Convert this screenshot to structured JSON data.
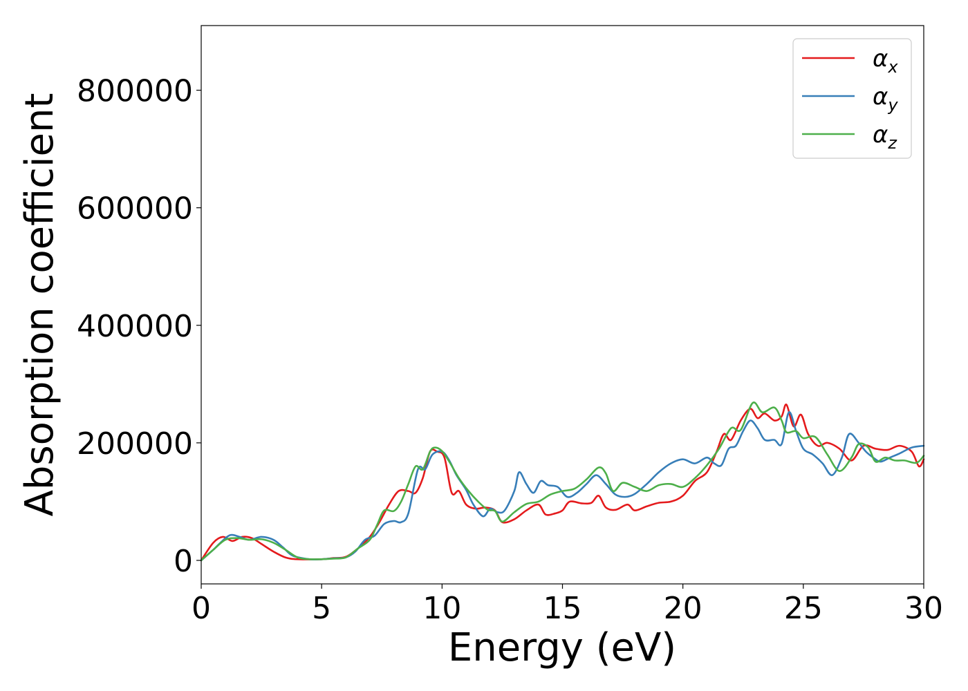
{
  "chart_data": {
    "type": "line",
    "title": "",
    "xlabel": "Energy (eV)",
    "ylabel": "Absorption coefficient",
    "xlim": [
      0,
      30
    ],
    "ylim": [
      -40000,
      910000
    ],
    "xticks": [
      0,
      5,
      10,
      15,
      20,
      25,
      30
    ],
    "xtick_labels": [
      "0",
      "5",
      "10",
      "15",
      "20",
      "25",
      "30"
    ],
    "yticks": [
      0,
      200000,
      400000,
      600000,
      800000
    ],
    "ytick_labels": [
      "0",
      "200000",
      "400000",
      "600000",
      "800000"
    ],
    "grid": false,
    "legend_position": "top-right",
    "series": [
      {
        "name": "α_x",
        "legend_main": "α",
        "legend_sub": "x",
        "color": "#e41a1c",
        "points": [
          [
            0,
            0
          ],
          [
            0.5,
            30000
          ],
          [
            0.9,
            40000
          ],
          [
            1.3,
            33000
          ],
          [
            1.7,
            40000
          ],
          [
            2.1,
            38000
          ],
          [
            2.5,
            28000
          ],
          [
            3.0,
            15000
          ],
          [
            3.5,
            5000
          ],
          [
            4.0,
            2000
          ],
          [
            5.0,
            2000
          ],
          [
            5.5,
            4000
          ],
          [
            6.0,
            6000
          ],
          [
            6.5,
            20000
          ],
          [
            7.0,
            40000
          ],
          [
            7.4,
            65000
          ],
          [
            7.8,
            95000
          ],
          [
            8.2,
            118000
          ],
          [
            8.6,
            118000
          ],
          [
            8.9,
            115000
          ],
          [
            9.2,
            140000
          ],
          [
            9.5,
            185000
          ],
          [
            9.8,
            185000
          ],
          [
            10.1,
            175000
          ],
          [
            10.4,
            115000
          ],
          [
            10.7,
            118000
          ],
          [
            11.0,
            95000
          ],
          [
            11.4,
            88000
          ],
          [
            11.8,
            90000
          ],
          [
            12.2,
            85000
          ],
          [
            12.5,
            65000
          ],
          [
            13.0,
            70000
          ],
          [
            13.5,
            85000
          ],
          [
            14.0,
            95000
          ],
          [
            14.3,
            78000
          ],
          [
            14.7,
            80000
          ],
          [
            15.0,
            85000
          ],
          [
            15.3,
            100000
          ],
          [
            15.8,
            97000
          ],
          [
            16.2,
            98000
          ],
          [
            16.5,
            110000
          ],
          [
            16.8,
            90000
          ],
          [
            17.2,
            86000
          ],
          [
            17.7,
            95000
          ],
          [
            18.0,
            85000
          ],
          [
            18.5,
            92000
          ],
          [
            19.0,
            98000
          ],
          [
            19.5,
            100000
          ],
          [
            20.0,
            110000
          ],
          [
            20.5,
            135000
          ],
          [
            21.0,
            150000
          ],
          [
            21.4,
            185000
          ],
          [
            21.7,
            215000
          ],
          [
            22.0,
            205000
          ],
          [
            22.4,
            238000
          ],
          [
            22.8,
            258000
          ],
          [
            23.1,
            242000
          ],
          [
            23.4,
            250000
          ],
          [
            23.8,
            238000
          ],
          [
            24.1,
            245000
          ],
          [
            24.3,
            265000
          ],
          [
            24.6,
            228000
          ],
          [
            24.9,
            248000
          ],
          [
            25.2,
            215000
          ],
          [
            25.6,
            195000
          ],
          [
            26.0,
            200000
          ],
          [
            26.5,
            190000
          ],
          [
            27.0,
            170000
          ],
          [
            27.5,
            195000
          ],
          [
            28.0,
            190000
          ],
          [
            28.5,
            188000
          ],
          [
            29.0,
            195000
          ],
          [
            29.5,
            185000
          ],
          [
            29.8,
            160000
          ],
          [
            30.0,
            172000
          ]
        ]
      },
      {
        "name": "α_y",
        "legend_main": "α",
        "legend_sub": "y",
        "color": "#377eb8",
        "points": [
          [
            0,
            0
          ],
          [
            0.5,
            18000
          ],
          [
            0.8,
            30000
          ],
          [
            1.2,
            43000
          ],
          [
            1.6,
            40000
          ],
          [
            2.0,
            35000
          ],
          [
            2.5,
            40000
          ],
          [
            3.0,
            35000
          ],
          [
            3.4,
            22000
          ],
          [
            3.8,
            8000
          ],
          [
            4.5,
            2000
          ],
          [
            5.0,
            2000
          ],
          [
            5.5,
            3500
          ],
          [
            6.0,
            5000
          ],
          [
            6.4,
            15000
          ],
          [
            6.8,
            35000
          ],
          [
            7.2,
            42000
          ],
          [
            7.6,
            62000
          ],
          [
            8.0,
            67000
          ],
          [
            8.3,
            65000
          ],
          [
            8.6,
            80000
          ],
          [
            9.0,
            155000
          ],
          [
            9.3,
            155000
          ],
          [
            9.6,
            180000
          ],
          [
            10.0,
            185000
          ],
          [
            10.3,
            170000
          ],
          [
            10.6,
            145000
          ],
          [
            11.0,
            120000
          ],
          [
            11.3,
            95000
          ],
          [
            11.7,
            75000
          ],
          [
            12.0,
            88000
          ],
          [
            12.3,
            82000
          ],
          [
            12.6,
            85000
          ],
          [
            13.0,
            118000
          ],
          [
            13.2,
            150000
          ],
          [
            13.5,
            130000
          ],
          [
            13.8,
            115000
          ],
          [
            14.1,
            135000
          ],
          [
            14.4,
            128000
          ],
          [
            14.8,
            125000
          ],
          [
            15.2,
            108000
          ],
          [
            15.6,
            115000
          ],
          [
            16.0,
            130000
          ],
          [
            16.4,
            145000
          ],
          [
            16.8,
            130000
          ],
          [
            17.2,
            112000
          ],
          [
            17.6,
            108000
          ],
          [
            18.0,
            113000
          ],
          [
            18.5,
            130000
          ],
          [
            19.0,
            150000
          ],
          [
            19.5,
            165000
          ],
          [
            20.0,
            172000
          ],
          [
            20.5,
            165000
          ],
          [
            21.0,
            175000
          ],
          [
            21.3,
            165000
          ],
          [
            21.6,
            162000
          ],
          [
            21.9,
            190000
          ],
          [
            22.2,
            195000
          ],
          [
            22.5,
            220000
          ],
          [
            22.8,
            238000
          ],
          [
            23.1,
            225000
          ],
          [
            23.4,
            205000
          ],
          [
            23.8,
            205000
          ],
          [
            24.1,
            198000
          ],
          [
            24.4,
            252000
          ],
          [
            24.7,
            220000
          ],
          [
            25.0,
            190000
          ],
          [
            25.4,
            180000
          ],
          [
            25.8,
            165000
          ],
          [
            26.2,
            145000
          ],
          [
            26.6,
            175000
          ],
          [
            26.9,
            215000
          ],
          [
            27.3,
            200000
          ],
          [
            27.6,
            185000
          ],
          [
            27.9,
            175000
          ],
          [
            28.2,
            168000
          ],
          [
            28.6,
            175000
          ],
          [
            29.0,
            182000
          ],
          [
            29.5,
            192000
          ],
          [
            30.0,
            195000
          ]
        ]
      },
      {
        "name": "α_z",
        "legend_main": "α",
        "legend_sub": "z",
        "color": "#4daf4a",
        "points": [
          [
            0,
            0
          ],
          [
            0.5,
            18000
          ],
          [
            1.0,
            35000
          ],
          [
            1.5,
            38000
          ],
          [
            2.0,
            35000
          ],
          [
            2.5,
            36000
          ],
          [
            3.0,
            30000
          ],
          [
            3.5,
            18000
          ],
          [
            4.0,
            5000
          ],
          [
            4.5,
            2000
          ],
          [
            5.0,
            2000
          ],
          [
            5.5,
            3000
          ],
          [
            6.0,
            5000
          ],
          [
            6.5,
            20000
          ],
          [
            7.0,
            35000
          ],
          [
            7.3,
            60000
          ],
          [
            7.6,
            85000
          ],
          [
            8.0,
            84000
          ],
          [
            8.3,
            100000
          ],
          [
            8.6,
            130000
          ],
          [
            8.9,
            160000
          ],
          [
            9.2,
            155000
          ],
          [
            9.5,
            185000
          ],
          [
            9.7,
            192000
          ],
          [
            10.0,
            186000
          ],
          [
            10.3,
            168000
          ],
          [
            10.7,
            140000
          ],
          [
            11.1,
            118000
          ],
          [
            11.5,
            100000
          ],
          [
            11.9,
            86000
          ],
          [
            12.2,
            84000
          ],
          [
            12.5,
            66000
          ],
          [
            13.0,
            82000
          ],
          [
            13.5,
            96000
          ],
          [
            14.0,
            100000
          ],
          [
            14.5,
            112000
          ],
          [
            15.0,
            118000
          ],
          [
            15.5,
            122000
          ],
          [
            16.0,
            138000
          ],
          [
            16.5,
            158000
          ],
          [
            16.8,
            148000
          ],
          [
            17.1,
            118000
          ],
          [
            17.5,
            132000
          ],
          [
            18.0,
            125000
          ],
          [
            18.5,
            118000
          ],
          [
            19.0,
            128000
          ],
          [
            19.5,
            130000
          ],
          [
            20.0,
            125000
          ],
          [
            20.5,
            140000
          ],
          [
            21.0,
            162000
          ],
          [
            21.5,
            190000
          ],
          [
            22.0,
            225000
          ],
          [
            22.4,
            222000
          ],
          [
            22.9,
            268000
          ],
          [
            23.3,
            252000
          ],
          [
            23.8,
            260000
          ],
          [
            24.1,
            238000
          ],
          [
            24.3,
            218000
          ],
          [
            24.7,
            220000
          ],
          [
            25.0,
            208000
          ],
          [
            25.5,
            210000
          ],
          [
            26.0,
            180000
          ],
          [
            26.5,
            152000
          ],
          [
            27.0,
            175000
          ],
          [
            27.3,
            198000
          ],
          [
            27.7,
            192000
          ],
          [
            28.0,
            168000
          ],
          [
            28.4,
            175000
          ],
          [
            28.8,
            170000
          ],
          [
            29.2,
            170000
          ],
          [
            29.7,
            166000
          ],
          [
            30.0,
            178000
          ]
        ]
      }
    ]
  }
}
